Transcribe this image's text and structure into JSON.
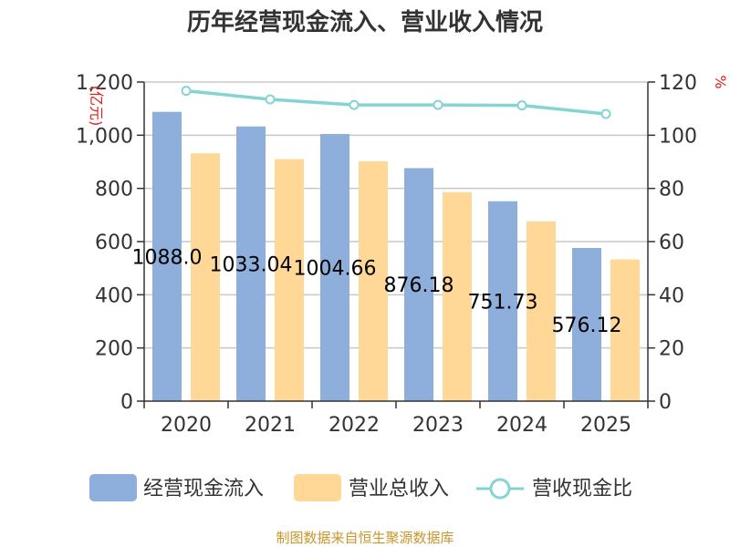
{
  "chart_data": {
    "type": "bar",
    "title": "历年经营现金流入、营业收入情况",
    "categories": [
      "2020",
      "2021",
      "2022",
      "2023",
      "2024",
      "2025"
    ],
    "series": [
      {
        "name": "经营现金流入",
        "kind": "bar",
        "axis": "left",
        "color": "#8eaedb",
        "values": [
          1088.0,
          1033.04,
          1004.66,
          876.18,
          751.73,
          576.12
        ],
        "labels": [
          "1088.0",
          "1033.04",
          "1004.66",
          "876.18",
          "751.73",
          "576.12"
        ]
      },
      {
        "name": "营业总收入",
        "kind": "bar",
        "axis": "left",
        "color": "#ffd897",
        "values": [
          932,
          910,
          902,
          786,
          676,
          533
        ]
      },
      {
        "name": "营收现金比",
        "kind": "line",
        "axis": "right",
        "color": "#86d3d3",
        "values": [
          116.7,
          113.5,
          111.4,
          111.4,
          111.2,
          108.0
        ]
      }
    ],
    "left_axis": {
      "unit": "亿元",
      "unit_display": "(亿元)",
      "ylim": [
        0,
        1200
      ],
      "ticks": [
        0,
        200,
        400,
        600,
        800,
        1000,
        1200
      ],
      "tick_labels": [
        "0",
        "200",
        "400",
        "600",
        "800",
        "1,000",
        "1,200"
      ]
    },
    "right_axis": {
      "unit": "%",
      "ylim": [
        0,
        120
      ],
      "ticks": [
        0,
        20,
        40,
        60,
        80,
        100,
        120
      ],
      "tick_labels": [
        "0",
        "20",
        "40",
        "60",
        "80",
        "100",
        "120"
      ]
    },
    "grid": true,
    "legend": "bottom"
  },
  "source_text": "制图数据来自恒生聚源数据库"
}
